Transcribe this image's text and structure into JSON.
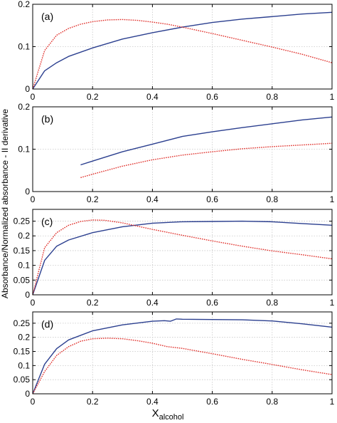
{
  "chart_data": [
    {
      "type": "line",
      "panel_label": "(a)",
      "xlim": [
        0,
        1
      ],
      "ylim": [
        0,
        0.2
      ],
      "xticks": [
        "0",
        "0.2",
        "0.4",
        "0.6",
        "0.8",
        "1"
      ],
      "yticks": [
        "0",
        "0.1",
        "0.2"
      ],
      "grid": true,
      "series": [
        {
          "color": "#2b3f8f",
          "dash": "solid",
          "x": [
            0,
            0.04,
            0.08,
            0.12,
            0.2,
            0.3,
            0.4,
            0.5,
            0.6,
            0.7,
            0.8,
            0.9,
            1.0
          ],
          "y": [
            0,
            0.043,
            0.062,
            0.077,
            0.097,
            0.118,
            0.133,
            0.146,
            0.157,
            0.165,
            0.171,
            0.177,
            0.181
          ]
        },
        {
          "color": "#e0302b",
          "dash": "dotted",
          "x": [
            0,
            0.04,
            0.08,
            0.12,
            0.16,
            0.2,
            0.25,
            0.3,
            0.35,
            0.4,
            0.45,
            0.5,
            0.6,
            0.7,
            0.8,
            0.9,
            1.0
          ],
          "y": [
            0,
            0.091,
            0.127,
            0.143,
            0.153,
            0.159,
            0.163,
            0.164,
            0.162,
            0.158,
            0.153,
            0.146,
            0.131,
            0.115,
            0.099,
            0.082,
            0.062
          ]
        }
      ]
    },
    {
      "type": "line",
      "panel_label": "(b)",
      "xlim": [
        0,
        1
      ],
      "ylim": [
        0,
        0.2
      ],
      "xticks": [
        "0",
        "0.2",
        "0.4",
        "0.6",
        "0.8",
        "1"
      ],
      "yticks": [
        "0",
        "0.1",
        "0.2"
      ],
      "grid": true,
      "series": [
        {
          "color": "#2b3f8f",
          "dash": "solid",
          "x": [
            0.16,
            0.2,
            0.3,
            0.4,
            0.5,
            0.6,
            0.7,
            0.8,
            0.9,
            1.0
          ],
          "y": [
            0.063,
            0.072,
            0.094,
            0.112,
            0.13,
            0.141,
            0.151,
            0.16,
            0.169,
            0.176
          ]
        },
        {
          "color": "#e0302b",
          "dash": "dotted",
          "x": [
            0.16,
            0.2,
            0.3,
            0.4,
            0.5,
            0.6,
            0.7,
            0.8,
            0.9,
            1.0
          ],
          "y": [
            0.033,
            0.041,
            0.06,
            0.075,
            0.086,
            0.094,
            0.101,
            0.106,
            0.11,
            0.114
          ]
        }
      ]
    },
    {
      "type": "line",
      "panel_label": "(c)",
      "xlim": [
        0,
        1
      ],
      "ylim": [
        0,
        0.29
      ],
      "xticks": [
        "0",
        "0.2",
        "0.4",
        "0.6",
        "0.8",
        "1"
      ],
      "yticks": [
        "0",
        "0.05",
        "0.1",
        "0.15",
        "0.2",
        "0.25"
      ],
      "grid": true,
      "series": [
        {
          "color": "#2b3f8f",
          "dash": "solid",
          "x": [
            0,
            0.04,
            0.08,
            0.12,
            0.2,
            0.3,
            0.4,
            0.5,
            0.6,
            0.7,
            0.8,
            0.9,
            1.0
          ],
          "y": [
            0,
            0.117,
            0.165,
            0.186,
            0.211,
            0.231,
            0.243,
            0.248,
            0.249,
            0.25,
            0.248,
            0.242,
            0.236
          ]
        },
        {
          "color": "#e0302b",
          "dash": "dotted",
          "x": [
            0,
            0.04,
            0.08,
            0.12,
            0.16,
            0.2,
            0.24,
            0.3,
            0.35,
            0.4,
            0.5,
            0.6,
            0.7,
            0.8,
            0.9,
            1.0
          ],
          "y": [
            0,
            0.16,
            0.211,
            0.236,
            0.249,
            0.254,
            0.253,
            0.244,
            0.233,
            0.222,
            0.202,
            0.183,
            0.165,
            0.149,
            0.136,
            0.122
          ]
        }
      ]
    },
    {
      "type": "line",
      "panel_label": "(d)",
      "xlim": [
        0,
        1
      ],
      "ylim": [
        0,
        0.29
      ],
      "xticks": [
        "0",
        "0.2",
        "0.4",
        "0.6",
        "0.8",
        "1"
      ],
      "yticks": [
        "0",
        "0.05",
        "0.1",
        "0.15",
        "0.2",
        "0.25"
      ],
      "grid": true,
      "xlabel": "X",
      "xlabel_sub": "alcohol",
      "series": [
        {
          "color": "#2b3f8f",
          "dash": "solid",
          "x": [
            0,
            0.04,
            0.08,
            0.12,
            0.2,
            0.3,
            0.4,
            0.44,
            0.46,
            0.48,
            0.5,
            0.6,
            0.7,
            0.8,
            0.9,
            1.0
          ],
          "y": [
            0,
            0.105,
            0.16,
            0.191,
            0.223,
            0.244,
            0.257,
            0.259,
            0.257,
            0.265,
            0.264,
            0.263,
            0.262,
            0.258,
            0.248,
            0.236
          ]
        },
        {
          "color": "#e0302b",
          "dash": "dotted",
          "x": [
            0,
            0.04,
            0.08,
            0.12,
            0.16,
            0.2,
            0.25,
            0.3,
            0.35,
            0.4,
            0.45,
            0.5,
            0.6,
            0.7,
            0.8,
            0.9,
            1.0
          ],
          "y": [
            0,
            0.079,
            0.136,
            0.167,
            0.186,
            0.195,
            0.197,
            0.195,
            0.188,
            0.179,
            0.167,
            0.161,
            0.142,
            0.122,
            0.104,
            0.085,
            0.068
          ]
        }
      ]
    }
  ],
  "y_axis_label": "Absorbance/Normalized absorbance - II derivative"
}
